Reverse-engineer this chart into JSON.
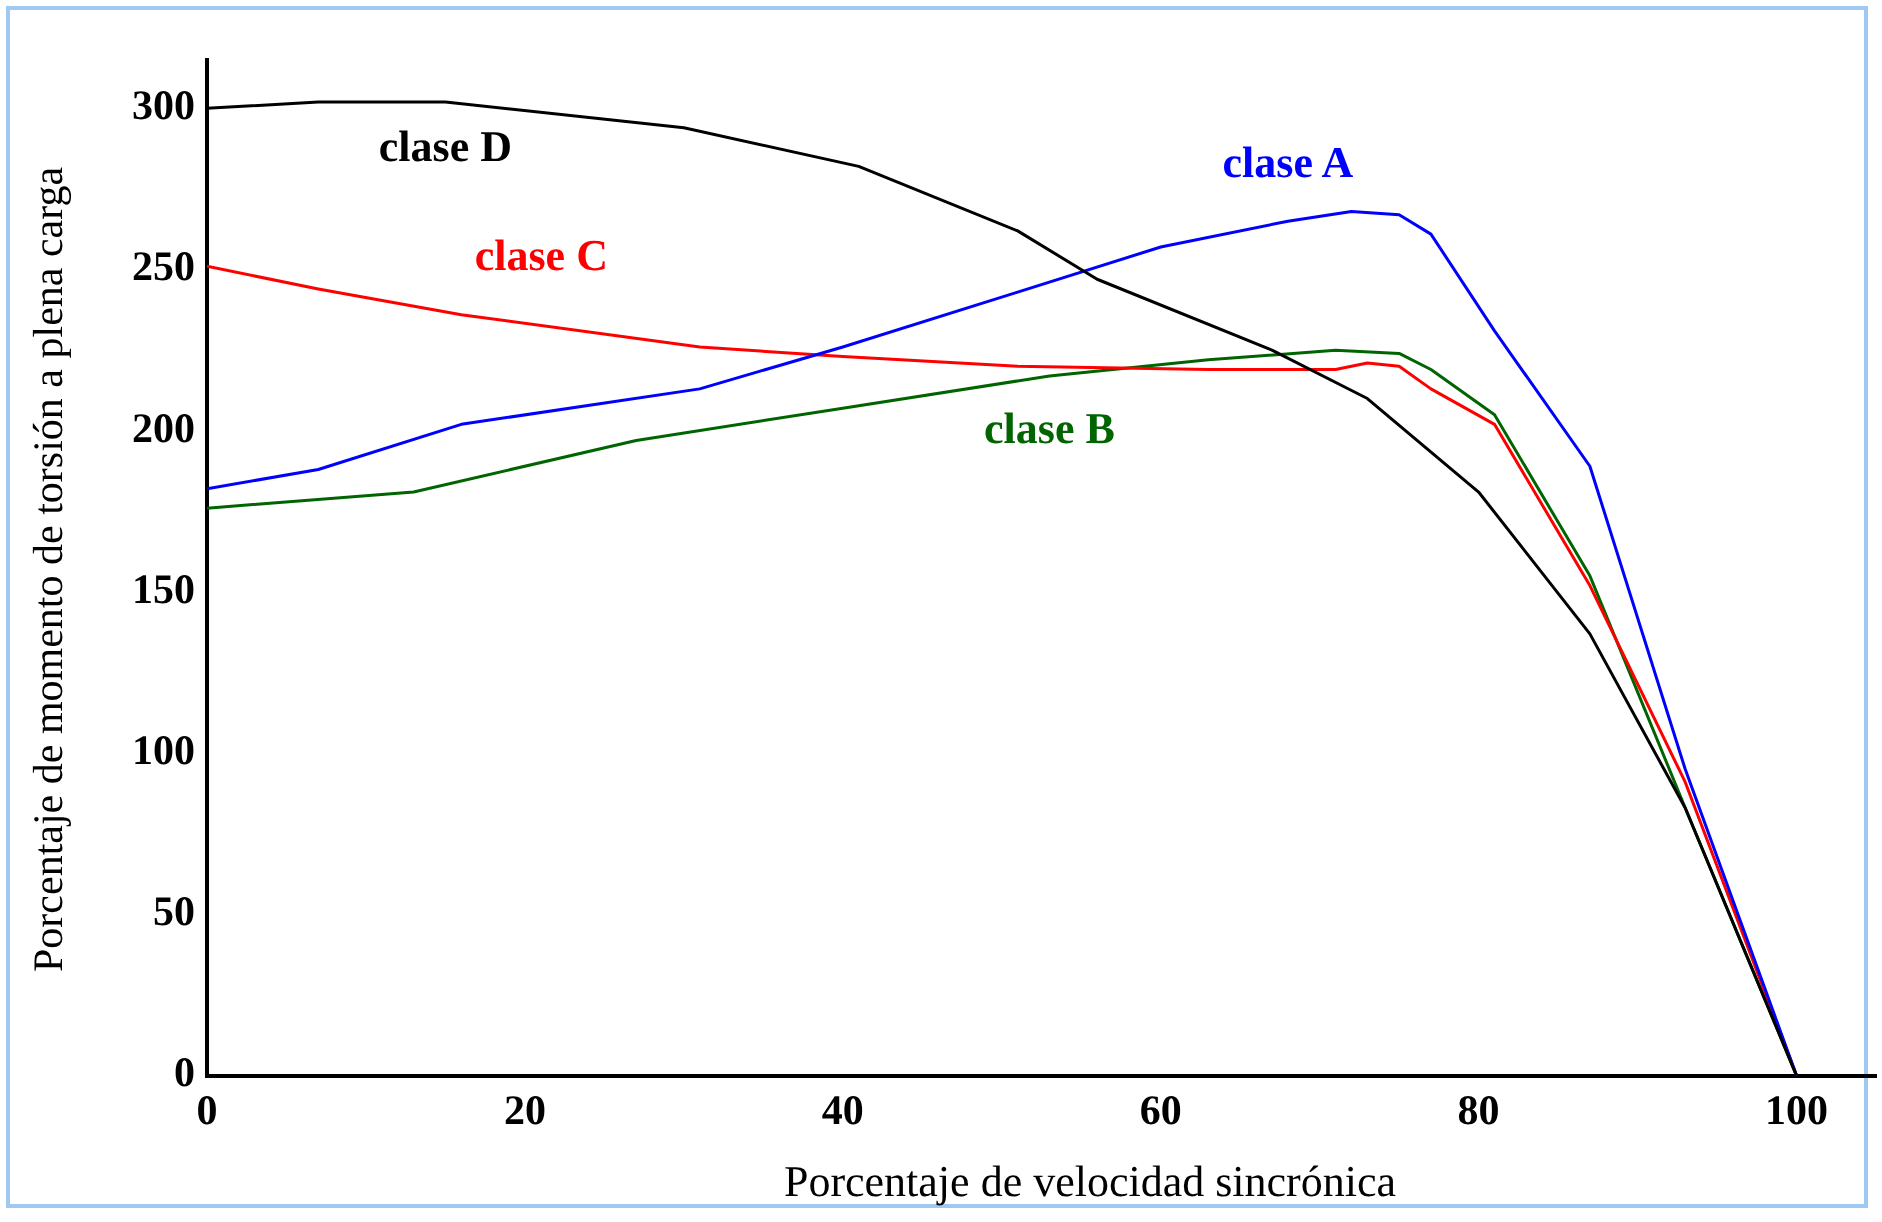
{
  "chart_data": {
    "type": "line",
    "xlabel": "Porcentaje de velocidad sincrónica",
    "ylabel": "Porcentaje de momento de torsión a plena carga",
    "xlim": [
      0,
      105
    ],
    "xticks": [
      0,
      20,
      40,
      60,
      80,
      100
    ],
    "ylim": [
      0,
      315
    ],
    "yticks": [
      0,
      50,
      100,
      150,
      200,
      250,
      300
    ],
    "grid": false,
    "legend": false,
    "marker": "none",
    "line_style": "solid",
    "series": [
      {
        "name": "clase D",
        "color": "#000000",
        "x": [
          0,
          7,
          15,
          30,
          41,
          51,
          56,
          67,
          73,
          80,
          87,
          93,
          100
        ],
        "values": [
          300,
          302,
          302,
          294,
          282,
          262,
          247,
          225,
          210,
          181,
          137,
          83,
          0
        ]
      },
      {
        "name": "clase A",
        "color": "#0000ff",
        "x": [
          0,
          7,
          16,
          31,
          40,
          51,
          60,
          68,
          72,
          75,
          77,
          81,
          87,
          93,
          100
        ],
        "values": [
          182,
          188,
          202,
          213,
          226,
          243,
          257,
          265,
          268,
          267,
          261,
          231,
          189,
          95,
          0
        ]
      },
      {
        "name": "clase C",
        "color": "#ff0000",
        "x": [
          0,
          7,
          16,
          31,
          40,
          51,
          63,
          71,
          73,
          75,
          77,
          81,
          87,
          93,
          100
        ],
        "values": [
          251,
          244,
          236,
          226,
          223,
          220,
          219,
          219,
          221,
          220,
          213,
          202,
          152,
          91,
          0
        ]
      },
      {
        "name": "clase B",
        "color": "#006400",
        "x": [
          0,
          13,
          27,
          40,
          53,
          63,
          71,
          75,
          77,
          81,
          87,
          93,
          100
        ],
        "values": [
          176,
          181,
          197,
          207,
          217,
          222,
          225,
          224,
          219,
          205,
          155,
          83,
          0
        ]
      }
    ]
  }
}
